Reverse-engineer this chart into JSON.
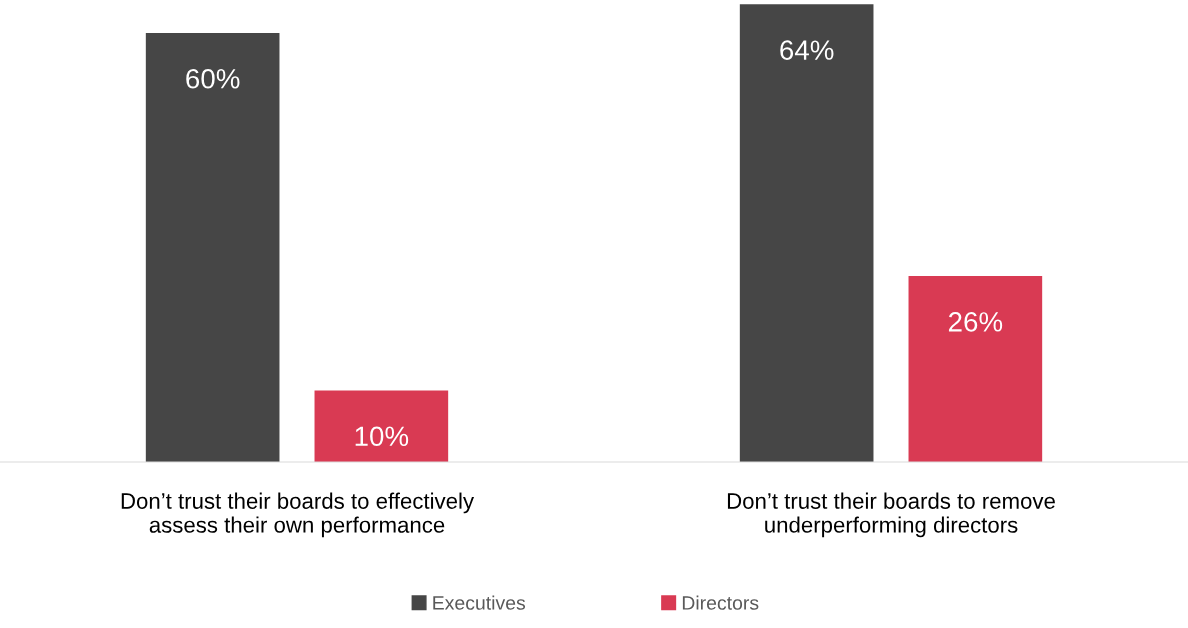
{
  "chart_data": {
    "type": "bar",
    "categories": [
      "Don’t trust their boards to effectively\nassess their own performance",
      "Don’t trust their boards to remove\nunderperforming directors"
    ],
    "series": [
      {
        "name": "Executives",
        "color": "#464646",
        "values": [
          60,
          64
        ],
        "value_labels": [
          "60%",
          "64%"
        ]
      },
      {
        "name": "Directors",
        "color": "#d93a53",
        "values": [
          10,
          26
        ],
        "value_labels": [
          "10%",
          "26%"
        ]
      }
    ],
    "tick_labels": "x",
    "grid": false,
    "legend": "bottom"
  }
}
